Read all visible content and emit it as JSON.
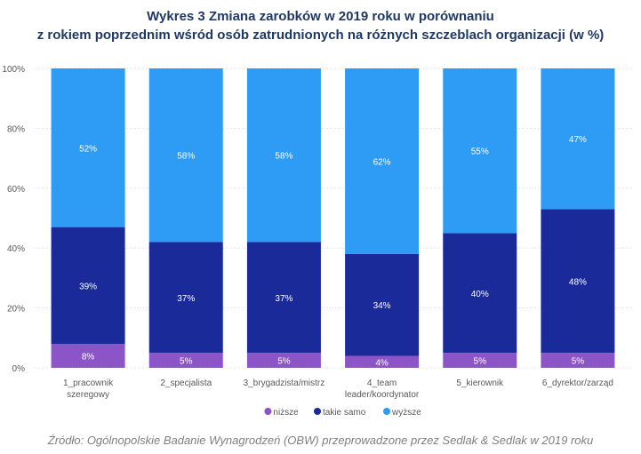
{
  "chart_data": {
    "type": "bar",
    "stacked": true,
    "percent": true,
    "title_line1": "Wykres 3 Zmiana zarobków w 2019 roku w porównaniu",
    "title_line2": "z rokiem poprzednim wśród osób zatrudnionych na różnych szczeblach organizacji (w %)",
    "ylim": [
      0,
      100
    ],
    "yticks": [
      0,
      20,
      40,
      60,
      80,
      100
    ],
    "ytick_labels": [
      "0%",
      "20%",
      "40%",
      "60%",
      "80%",
      "100%"
    ],
    "grid": true,
    "legend_position": "bottom",
    "categories": [
      [
        "1_pracownik",
        "szeregowy"
      ],
      [
        "2_specjalista"
      ],
      [
        "3_brygadzista/mistrz"
      ],
      [
        "4_team",
        "leader/koordynator"
      ],
      [
        "5_kierownik"
      ],
      [
        "6_dyrektor/zarząd"
      ]
    ],
    "series": [
      {
        "name": "niższe",
        "color": "#8b55c8",
        "values": [
          8,
          5,
          5,
          4,
          5,
          5
        ],
        "labels": [
          "8%",
          "5%",
          "5%",
          "4%",
          "5%",
          "5%"
        ]
      },
      {
        "name": "takie samo",
        "color": "#1a2a99",
        "values": [
          39,
          37,
          37,
          34,
          40,
          48
        ],
        "labels": [
          "39%",
          "37%",
          "37%",
          "34%",
          "40%",
          "48%"
        ]
      },
      {
        "name": "wyższe",
        "color": "#2e9bf5",
        "values": [
          52,
          58,
          58,
          62,
          55,
          47
        ],
        "labels": [
          "52%",
          "58%",
          "58%",
          "62%",
          "55%",
          "47%"
        ]
      }
    ]
  },
  "source": "Źródło: Ogólnopolskie Badanie Wynagrodzeń (OBW) przeprowadzone przez Sedlak & Sedlak w 2019 roku"
}
